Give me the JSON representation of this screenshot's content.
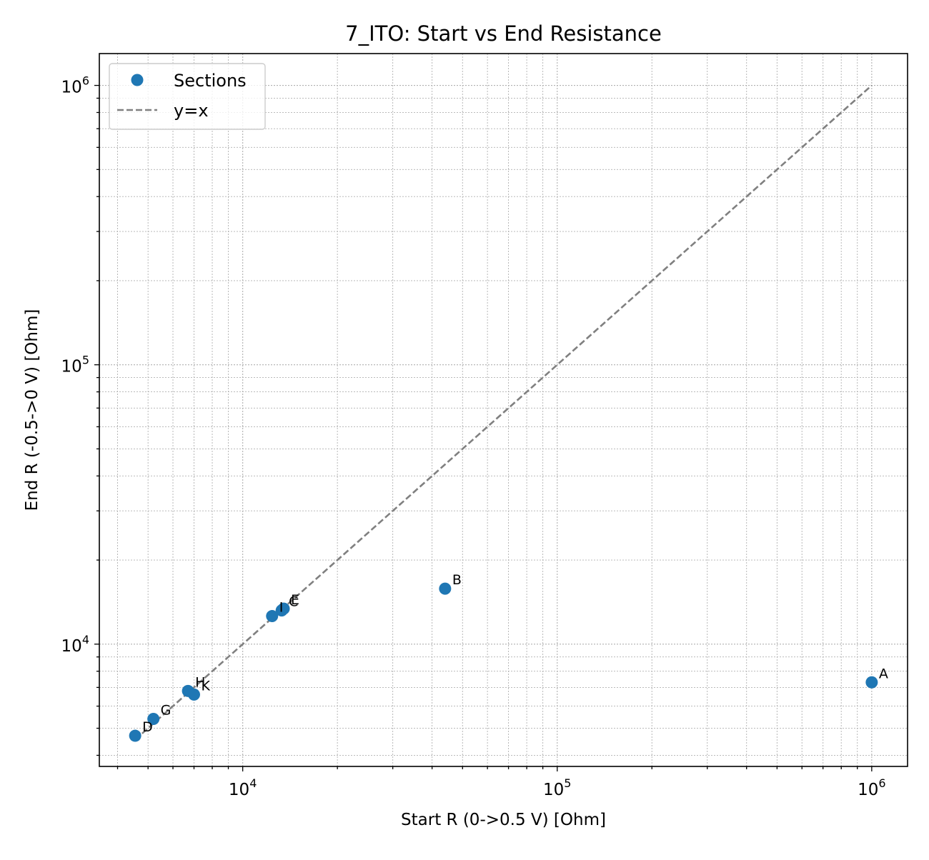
{
  "chart_data": {
    "type": "scatter",
    "title": "7_ITO: Start vs End Resistance",
    "xlabel": "Start R (0->0.5 V) [Ohm]",
    "ylabel": "End R (-0.5->0 V) [Ohm]",
    "xscale": "log",
    "yscale": "log",
    "xlim": [
      3500,
      1300000
    ],
    "ylim": [
      3650,
      1300000
    ],
    "x_ticks": [
      {
        "value": 10000,
        "base": "10",
        "exp": "4"
      },
      {
        "value": 100000,
        "base": "10",
        "exp": "5"
      },
      {
        "value": 1000000,
        "base": "10",
        "exp": "6"
      }
    ],
    "y_ticks": [
      {
        "value": 10000,
        "base": "10",
        "exp": "4"
      },
      {
        "value": 100000,
        "base": "10",
        "exp": "5"
      },
      {
        "value": 1000000,
        "base": "10",
        "exp": "6"
      }
    ],
    "grid": true,
    "legend": {
      "position": "top-left",
      "entries": [
        {
          "label": "Sections",
          "style": "marker"
        },
        {
          "label": "y=x",
          "style": "dashed-line"
        }
      ]
    },
    "series": [
      {
        "name": "Sections",
        "color": "#1f77b4",
        "points": [
          {
            "label": "A",
            "x": 1000000,
            "y": 7300
          },
          {
            "label": "B",
            "x": 44000,
            "y": 15800
          },
          {
            "label": "C",
            "x": 13300,
            "y": 13200
          },
          {
            "label": "E",
            "x": 13500,
            "y": 13400
          },
          {
            "label": "I",
            "x": 12400,
            "y": 12600
          },
          {
            "label": "H",
            "x": 6700,
            "y": 6800
          },
          {
            "label": "K",
            "x": 7000,
            "y": 6600
          },
          {
            "label": "G",
            "x": 5200,
            "y": 5400
          },
          {
            "label": "D",
            "x": 4550,
            "y": 4700
          }
        ]
      },
      {
        "name": "y=x",
        "color": "#808080",
        "x": [
          4550,
          1000000
        ],
        "y": [
          4550,
          1000000
        ]
      }
    ]
  }
}
